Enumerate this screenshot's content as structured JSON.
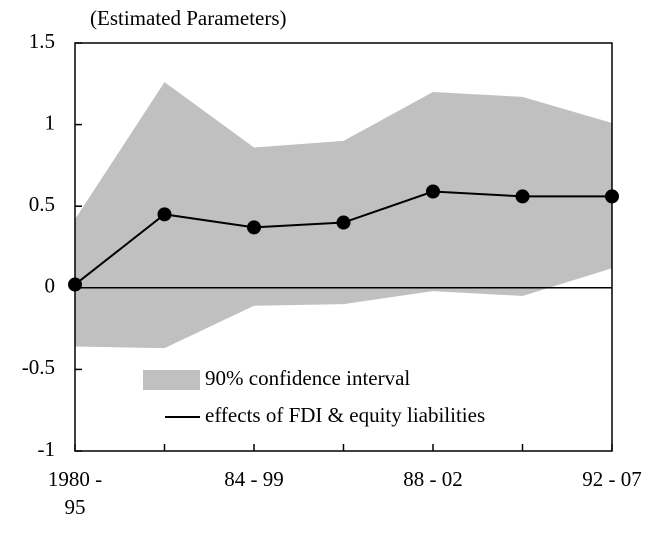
{
  "chart_data": {
    "type": "line",
    "y_label": "(Estimated Parameters)",
    "categories": [
      "1980 -\n95",
      null,
      "84 - 99",
      null,
      "88 - 02",
      null,
      "92 - 07"
    ],
    "series": [
      {
        "name": "90% confidence interval",
        "type": "band",
        "color": "#c0c0c0",
        "lower": [
          -0.36,
          -0.37,
          -0.11,
          -0.1,
          -0.02,
          -0.05,
          0.12
        ],
        "upper": [
          0.42,
          1.26,
          0.86,
          0.9,
          1.2,
          1.17,
          1.01
        ]
      },
      {
        "name": "effects of FDI & equity liabilities",
        "type": "line",
        "color": "#000000",
        "values": [
          0.02,
          0.45,
          0.37,
          0.4,
          0.59,
          0.56,
          0.56
        ]
      }
    ],
    "ylim": [
      -1,
      1.5
    ],
    "yticks": [
      -1,
      -0.5,
      0,
      0.5,
      1,
      1.5
    ],
    "legend": "lower-left"
  }
}
